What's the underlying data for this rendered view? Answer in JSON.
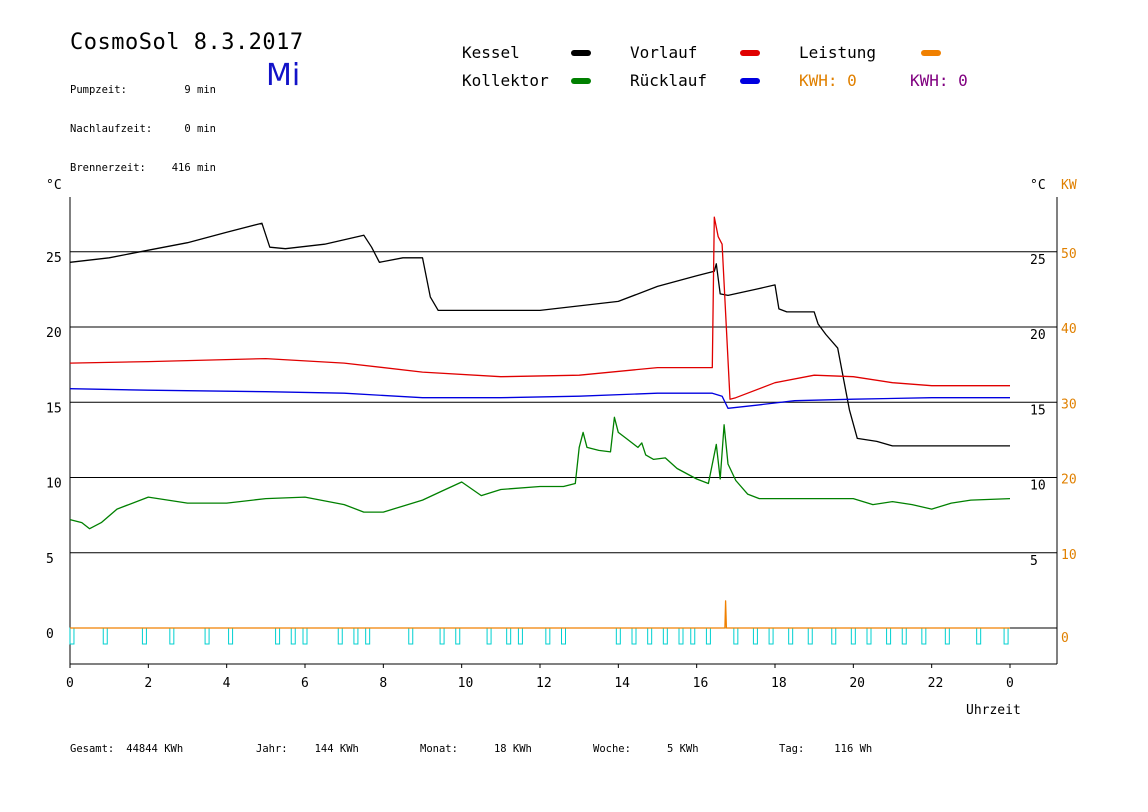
{
  "header": {
    "title": "CosmoSol 8.3.2017",
    "day": "Mi",
    "info": [
      {
        "label": "Pumpzeit:",
        "value": "9 min"
      },
      {
        "label": "Nachlaufzeit:",
        "value": "0 min"
      },
      {
        "label": "Brennerzeit:",
        "value": "416 min"
      }
    ]
  },
  "legend": [
    {
      "label": "Kessel",
      "color": "#000000",
      "label_color": "#000000"
    },
    {
      "label": "Vorlauf",
      "color": "#e00000",
      "label_color": "#000000"
    },
    {
      "label": "Leistung",
      "color": "#f08000",
      "label_color": "#000000"
    },
    {
      "label": "Kollektor",
      "color": "#008000",
      "label_color": "#000000"
    },
    {
      "label": "Rücklauf",
      "color": "#0000e0",
      "label_color": "#000000"
    },
    {
      "label": "KWH: 0",
      "color": null,
      "label_color": "#e08000"
    },
    {
      "label": "KWH: 0",
      "color": null,
      "label_color": "#800080"
    }
  ],
  "footer": {
    "stats": [
      {
        "label": "Gesamt:",
        "value": "44844 KWh"
      },
      {
        "label": "Jahr:",
        "value": "144 KWh"
      },
      {
        "label": "Monat:",
        "value": "18 KWh"
      },
      {
        "label": "Woche:",
        "value": "5 KWh"
      },
      {
        "label": "Tag:",
        "value": "116 Wh"
      }
    ]
  },
  "chart_data": {
    "type": "line",
    "title": "",
    "xlabel": "Uhrzeit",
    "ylabel_left": "°C",
    "ylabel_right": "°C",
    "ylabel_right2": "KW",
    "xlim": [
      0,
      24
    ],
    "x_tick_labels": [
      "0",
      "2",
      "4",
      "6",
      "8",
      "10",
      "12",
      "14",
      "16",
      "18",
      "20",
      "22",
      "0"
    ],
    "y_left_ticks": [
      0,
      5,
      10,
      15,
      20,
      25
    ],
    "y_right_ticks": [
      5,
      10,
      15,
      20,
      25
    ],
    "y_right_kw_ticks": [
      0,
      10,
      20,
      30,
      40,
      50
    ],
    "grid_lines_y": [
      5,
      10,
      15,
      20,
      25
    ],
    "ylim": [
      -1.5,
      29
    ],
    "series": [
      {
        "name": "Kessel",
        "color": "#000000",
        "x": [
          0,
          1,
          2,
          3,
          4,
          4.9,
          5.1,
          5.5,
          6.5,
          7.5,
          7.7,
          7.9,
          8.5,
          9.0,
          9.2,
          9.4,
          10,
          12,
          14,
          15,
          16,
          16.45,
          16.5,
          16.6,
          16.8,
          17.5,
          18.0,
          18.1,
          18.3,
          19.0,
          19.1,
          19.3,
          19.6,
          19.9,
          20.1,
          20.6,
          21.0,
          24
        ],
        "y": [
          24.3,
          24.6,
          25.1,
          25.6,
          26.3,
          26.9,
          25.3,
          25.2,
          25.5,
          26.1,
          25.3,
          24.3,
          24.6,
          24.6,
          22.0,
          21.1,
          21.1,
          21.1,
          21.7,
          22.7,
          23.4,
          23.7,
          24.2,
          22.2,
          22.1,
          22.5,
          22.8,
          21.2,
          21.0,
          21.0,
          20.2,
          19.5,
          18.6,
          14.5,
          12.6,
          12.4,
          12.1,
          12.1
        ]
      },
      {
        "name": "Vorlauf",
        "color": "#e00000",
        "x": [
          0,
          2,
          5,
          7,
          9,
          11,
          13,
          15,
          16.4,
          16.45,
          16.55,
          16.65,
          16.85,
          17.0,
          18.0,
          19.0,
          20.0,
          21.0,
          22.0,
          24
        ],
        "y": [
          17.6,
          17.7,
          17.9,
          17.6,
          17.0,
          16.7,
          16.8,
          17.3,
          17.3,
          27.3,
          26.0,
          25.5,
          15.2,
          15.3,
          16.3,
          16.8,
          16.7,
          16.3,
          16.1,
          16.1
        ]
      },
      {
        "name": "Rücklauf",
        "color": "#0000e0",
        "x": [
          0,
          2,
          5,
          7,
          9,
          11,
          13,
          15,
          16.4,
          16.65,
          16.8,
          17.5,
          18.5,
          20.0,
          22.0,
          24
        ],
        "y": [
          15.9,
          15.8,
          15.7,
          15.6,
          15.3,
          15.3,
          15.4,
          15.6,
          15.6,
          15.4,
          14.6,
          14.8,
          15.1,
          15.2,
          15.3,
          15.3
        ]
      },
      {
        "name": "Kollektor",
        "color": "#008000",
        "x": [
          0,
          0.3,
          0.5,
          0.8,
          1.2,
          2.0,
          3.0,
          4.0,
          5.0,
          6.0,
          7.0,
          7.5,
          8.0,
          8.5,
          9.0,
          9.5,
          10.0,
          10.5,
          11.0,
          12.0,
          12.6,
          12.9,
          13.0,
          13.1,
          13.2,
          13.5,
          13.8,
          13.9,
          14.0,
          14.2,
          14.5,
          14.6,
          14.7,
          14.9,
          15.2,
          15.5,
          16.0,
          16.3,
          16.5,
          16.6,
          16.7,
          16.8,
          17.0,
          17.3,
          17.6,
          18.0,
          19.0,
          20.0,
          20.5,
          21.0,
          21.5,
          22.0,
          22.5,
          23.0,
          24
        ],
        "y": [
          7.2,
          7.0,
          6.6,
          7.0,
          7.9,
          8.7,
          8.3,
          8.3,
          8.6,
          8.7,
          8.2,
          7.7,
          7.7,
          8.1,
          8.5,
          9.1,
          9.7,
          8.8,
          9.2,
          9.4,
          9.4,
          9.6,
          12.0,
          13.0,
          12.0,
          11.8,
          11.7,
          14.0,
          13.0,
          12.6,
          12.0,
          12.3,
          11.5,
          11.2,
          11.3,
          10.6,
          9.9,
          9.6,
          12.2,
          9.9,
          13.5,
          10.9,
          9.8,
          8.9,
          8.6,
          8.6,
          8.6,
          8.6,
          8.2,
          8.4,
          8.2,
          7.9,
          8.3,
          8.5,
          8.6
        ]
      },
      {
        "name": "Leistung",
        "color": "#f08000",
        "x": [
          0,
          16.72,
          16.74,
          16.76,
          24
        ],
        "y": [
          0,
          0,
          1.8,
          0,
          0
        ]
      }
    ],
    "pump_pulses_hours": [
      0.05,
      0.9,
      1.9,
      2.6,
      3.5,
      4.1,
      5.3,
      5.7,
      6.0,
      6.9,
      7.3,
      7.6,
      8.7,
      9.5,
      9.9,
      10.7,
      11.2,
      11.5,
      12.2,
      12.6,
      14.0,
      14.4,
      14.8,
      15.2,
      15.6,
      15.9,
      16.3,
      17.0,
      17.5,
      17.9,
      18.4,
      18.9,
      19.5,
      20.0,
      20.4,
      20.9,
      21.3,
      21.8,
      22.4,
      23.2,
      23.9
    ]
  }
}
